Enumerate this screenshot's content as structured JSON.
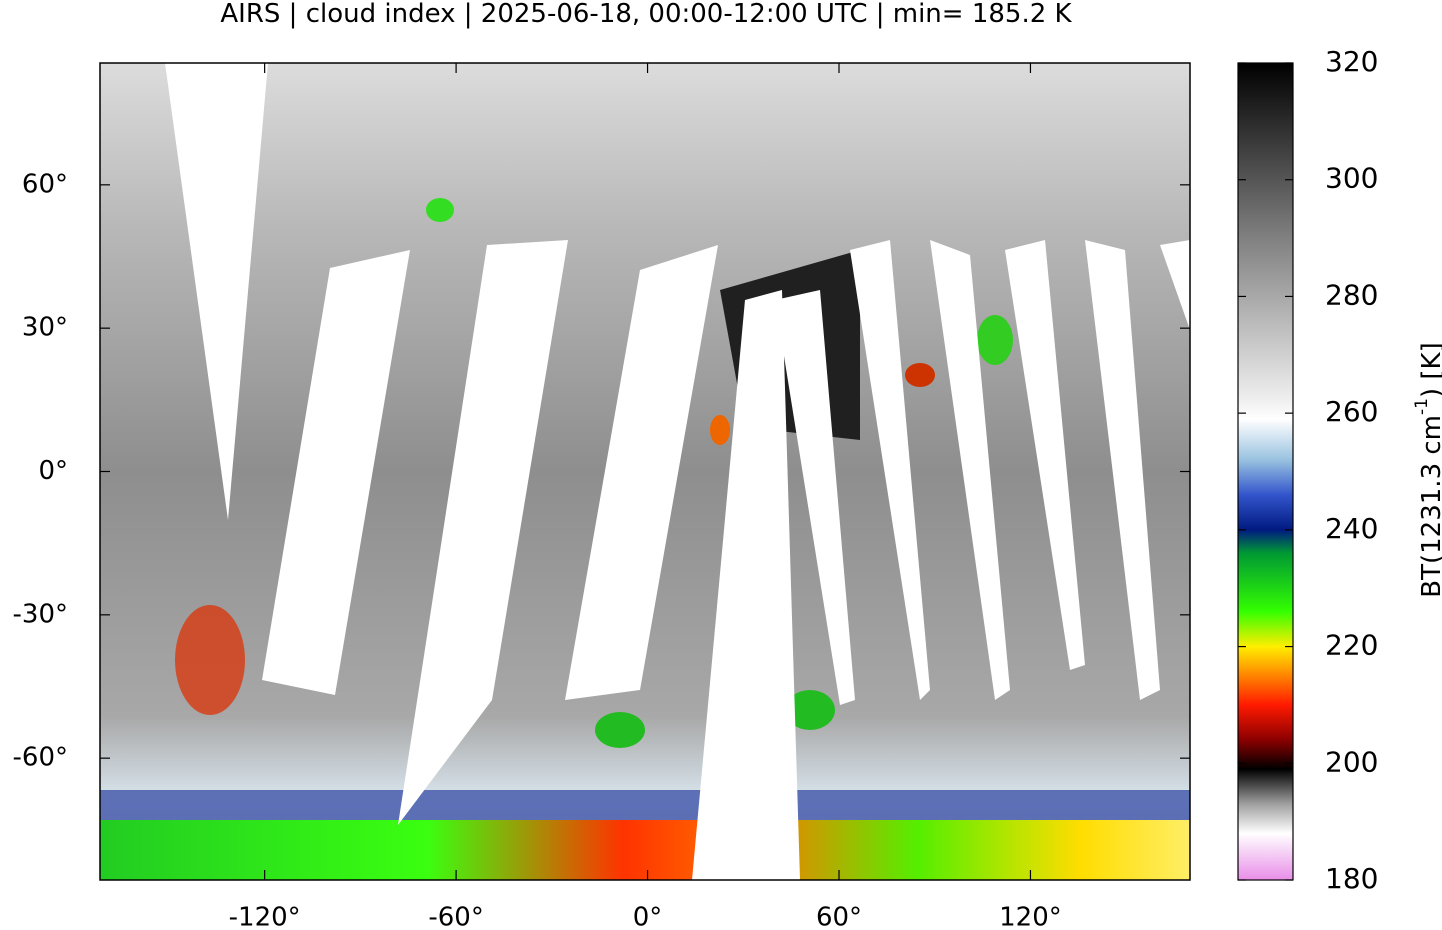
{
  "chart_data": {
    "type": "map",
    "title": "AIRS | cloud index | 2025-06-18, 00:00-12:00 UTC | min= 185.2 K",
    "xlim": [
      -171.6,
      170
    ],
    "ylim": [
      -85.5,
      85.5
    ],
    "xticks": [
      {
        "value": -120,
        "label": "-120°"
      },
      {
        "value": -60,
        "label": "-60°"
      },
      {
        "value": 0,
        "label": "0°"
      },
      {
        "value": 60,
        "label": "60°"
      },
      {
        "value": 120,
        "label": "120°"
      }
    ],
    "yticks": [
      {
        "value": 60,
        "label": "60°"
      },
      {
        "value": 30,
        "label": "30°"
      },
      {
        "value": 0,
        "label": "0°"
      },
      {
        "value": -30,
        "label": "-30°"
      },
      {
        "value": -60,
        "label": "-60°"
      }
    ],
    "colorbar": {
      "label": [
        "BT(1231.3 cm",
        "-1",
        ") [K]"
      ],
      "lim": [
        180,
        320
      ],
      "ticks": [
        180,
        200,
        220,
        240,
        260,
        280,
        300,
        320
      ],
      "colormap": [
        {
          "value": 180,
          "color": "#e88ee8"
        },
        {
          "value": 188,
          "color": "#ffffff"
        },
        {
          "value": 193,
          "color": "#a0a0a0"
        },
        {
          "value": 199,
          "color": "#000000"
        },
        {
          "value": 204,
          "color": "#8b0000"
        },
        {
          "value": 210,
          "color": "#ff1a00"
        },
        {
          "value": 216,
          "color": "#ff9900"
        },
        {
          "value": 220,
          "color": "#ffee00"
        },
        {
          "value": 226,
          "color": "#33ff00"
        },
        {
          "value": 236,
          "color": "#009933"
        },
        {
          "value": 240,
          "color": "#001a80"
        },
        {
          "value": 246,
          "color": "#3355cc"
        },
        {
          "value": 252,
          "color": "#99c2e0"
        },
        {
          "value": 259,
          "color": "#ffffff"
        },
        {
          "value": 262,
          "color": "#f0f0f0"
        },
        {
          "value": 290,
          "color": "#808080"
        },
        {
          "value": 320,
          "color": "#000000"
        }
      ]
    }
  }
}
